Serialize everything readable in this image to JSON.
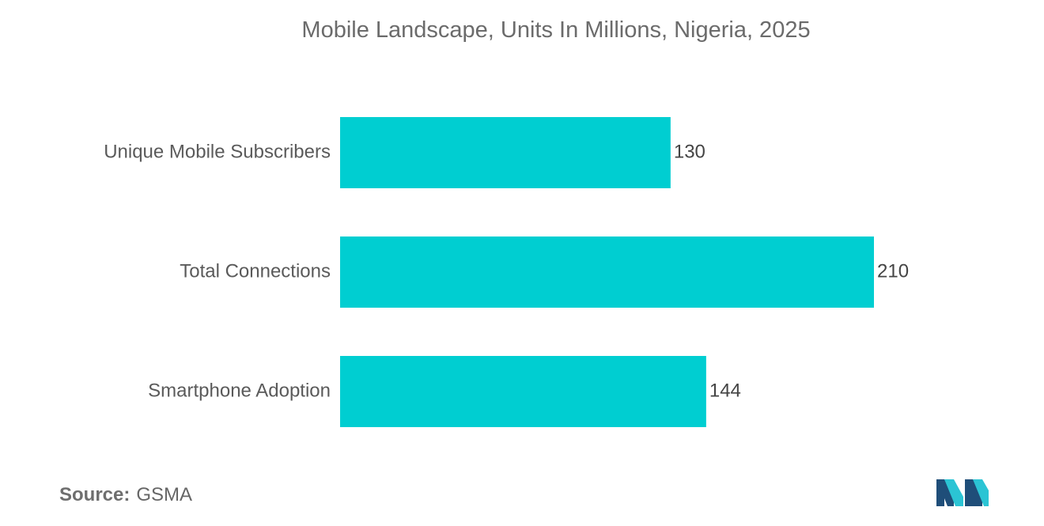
{
  "chart_data": {
    "type": "bar",
    "orientation": "horizontal",
    "title": "Mobile Landscape, Units In Millions, Nigeria, 2025",
    "categories": [
      "Unique Mobile Subscribers",
      "Total Connections",
      "Smartphone Adoption"
    ],
    "values": [
      130,
      210,
      144
    ],
    "xlabel": "",
    "ylabel": "",
    "xlim": [
      0,
      210
    ],
    "grid": false,
    "bar_color": "#00CED1"
  },
  "source": {
    "key": "Source:",
    "value": "GSMA"
  },
  "logo": {
    "icon": "mordor-intelligence-logo-icon",
    "colors": [
      "#1f4e79",
      "#2bc4d4"
    ]
  }
}
